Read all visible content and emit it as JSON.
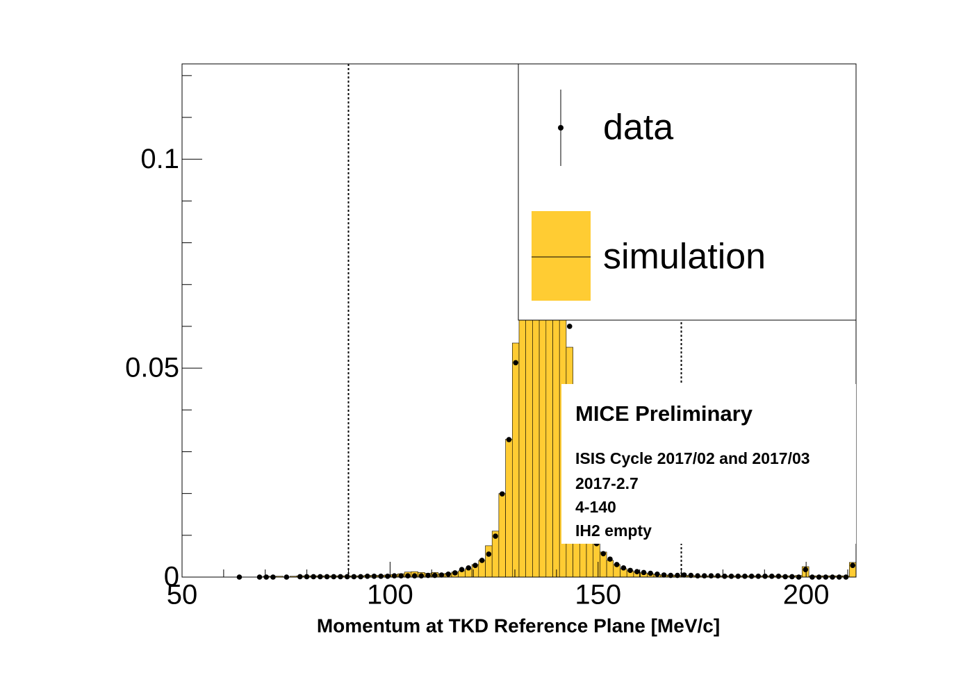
{
  "chart_data": {
    "type": "histogram",
    "x_label": "Momentum at TKD Reference Plane [MeV/c]",
    "bins": [
      50,
      51.62,
      53.24,
      54.86,
      56.48,
      58.1,
      59.72,
      61.34,
      62.96,
      64.58,
      66.2,
      67.82,
      69.44,
      71.06,
      72.68,
      74.3,
      75.92,
      77.54,
      79.16,
      80.78,
      82.4,
      84.02,
      85.64,
      87.26,
      88.88,
      90.5,
      92.12,
      93.74,
      95.36,
      96.98,
      98.6,
      100.22,
      101.84,
      103.46,
      105.08,
      106.7,
      108.32,
      109.94,
      111.56,
      113.18,
      114.8,
      116.42,
      118.04,
      119.66,
      121.28,
      122.9,
      124.52,
      126.14,
      127.76,
      129.38,
      131,
      132.62,
      134.24,
      135.86,
      137.48,
      139.1,
      140.72,
      142.34,
      143.96,
      145.58,
      147.2,
      148.82,
      150.44,
      152.06,
      153.68,
      155.3,
      156.92,
      158.54,
      160.16,
      161.78,
      163.4,
      165.02,
      166.64,
      168.26,
      169.88,
      171.5,
      173.12,
      174.74,
      176.36,
      177.98,
      179.6,
      181.22,
      182.84,
      184.46,
      186.08,
      187.7,
      189.32,
      190.94,
      192.56,
      194.18,
      195.8,
      197.42,
      199.04,
      200.66,
      202.28,
      203.9,
      205.52,
      207.14,
      208.76,
      210.38,
      212
    ],
    "series": [
      {
        "name": "simulation",
        "color": "#ffcc33",
        "style": "fill",
        "values": [
          0,
          0,
          0,
          0,
          0,
          0,
          0,
          0,
          0,
          0,
          0,
          0,
          0.0002,
          0.0002,
          0.0002,
          0,
          0.0002,
          0.0003,
          0.0003,
          0.0003,
          0.0003,
          0.0003,
          0.0003,
          0.0003,
          0.0003,
          0.0003,
          0.0003,
          0.0004,
          0.0004,
          0.0004,
          0.0005,
          0.0006,
          0.0008,
          0.0012,
          0.0013,
          0.0011,
          0.0009,
          0.0011,
          0.0008,
          0.0009,
          0.0012,
          0.0015,
          0.002,
          0.003,
          0.004,
          0.0075,
          0.011,
          0.02,
          0.033,
          0.056,
          0.07,
          0.085,
          0.095,
          0.095,
          0.09,
          0.08,
          0.068,
          0.055,
          0.046,
          0.025,
          0.012,
          0.008,
          0.006,
          0.004,
          0.003,
          0.002,
          0.0015,
          0.0012,
          0.001,
          0.0008,
          0.0006,
          0.0005,
          0.0005,
          0.0004,
          0.0004,
          0.0004,
          0.0003,
          0.0003,
          0.0003,
          0.0003,
          0.0003,
          0.0003,
          0.0003,
          0.0003,
          0.0003,
          0.0003,
          0.0003,
          0.0003,
          0.0003,
          0.0003,
          0.0003,
          0.0004,
          0.0025,
          0.0003,
          0.0003,
          0.0003,
          0.0003,
          0.0003,
          0.0003,
          0.0035
        ]
      },
      {
        "name": "data",
        "color": "#000000",
        "style": "points",
        "values": [
          null,
          null,
          null,
          null,
          null,
          null,
          null,
          null,
          0,
          null,
          null,
          0,
          0,
          0,
          null,
          0,
          null,
          0.0001,
          0.0001,
          0.0001,
          0.0001,
          0.0001,
          0.0001,
          0.0001,
          0.0001,
          0.0001,
          0.0001,
          0.0002,
          0.0002,
          0.0002,
          0.0002,
          0.0003,
          0.0003,
          0.0003,
          0.0003,
          0.0003,
          0.0004,
          0.0004,
          0.0005,
          0.0007,
          0.001,
          0.0018,
          0.0022,
          0.0028,
          0.004,
          0.0055,
          0.0098,
          0.0199,
          0.0329,
          0.0513,
          0.07,
          0.088,
          0.096,
          0.094,
          0.088,
          0.078,
          0.067,
          0.06,
          0.045,
          0.025,
          0.012,
          0.008,
          0.0056,
          0.0043,
          0.003,
          0.0022,
          0.0016,
          0.0013,
          0.0011,
          0.0009,
          0.0007,
          0.0005,
          0.0004,
          0.0004,
          0.0005,
          0.0004,
          0.0003,
          0.0003,
          0.0003,
          0.0003,
          0.0002,
          0.0002,
          0.0002,
          0.0002,
          0.0002,
          0.0002,
          0.0002,
          0.0002,
          0.0002,
          0.0001,
          0.0001,
          0,
          0.0018,
          0,
          0,
          0,
          0,
          0,
          0,
          0.0028
        ]
      }
    ],
    "xlim": [
      50,
      212
    ],
    "xticks": [
      50,
      100,
      150,
      200
    ],
    "xminor_ticks": [
      60,
      70,
      80,
      90,
      110,
      120,
      130,
      140,
      160,
      170,
      180,
      190,
      210
    ],
    "ylim": [
      0,
      0.1228
    ],
    "yticks": [
      0,
      0.05,
      0.1
    ],
    "yminor_ticks": [
      0.01,
      0.02,
      0.03,
      0.04,
      0.06,
      0.07,
      0.08,
      0.09,
      0.11,
      0.12
    ],
    "cut_lines": [
      90,
      170
    ],
    "annotations": [
      "MICE Preliminary",
      "ISIS Cycle 2017/02 and 2017/03",
      "2017-2.7",
      "4-140",
      "IH2 empty"
    ]
  }
}
